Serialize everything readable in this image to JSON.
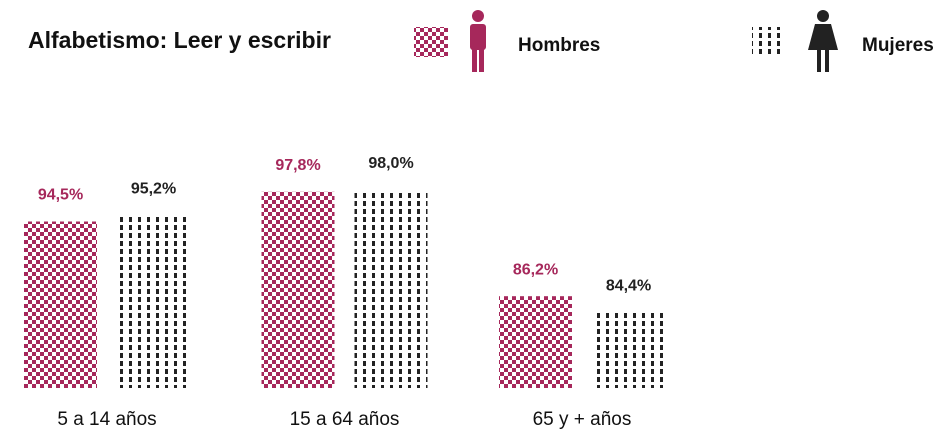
{
  "chart_data": {
    "type": "bar",
    "title": "Alfabetismo: Leer y escribir",
    "categories": [
      "5 a 14 años",
      "15 a 64 años",
      "65 y + años"
    ],
    "series": [
      {
        "name": "Hombres",
        "color": "#a6285b",
        "values": [
          94.5,
          97.8,
          86.2
        ],
        "value_labels": [
          "94,5%",
          "97,8%",
          "86,2%"
        ]
      },
      {
        "name": "Mujeres",
        "color": "#222222",
        "values": [
          95.2,
          98.0,
          84.4
        ],
        "value_labels": [
          "95,2%",
          "98,0%",
          "84,4%"
        ]
      }
    ],
    "ylim": [
      76,
      100
    ]
  }
}
